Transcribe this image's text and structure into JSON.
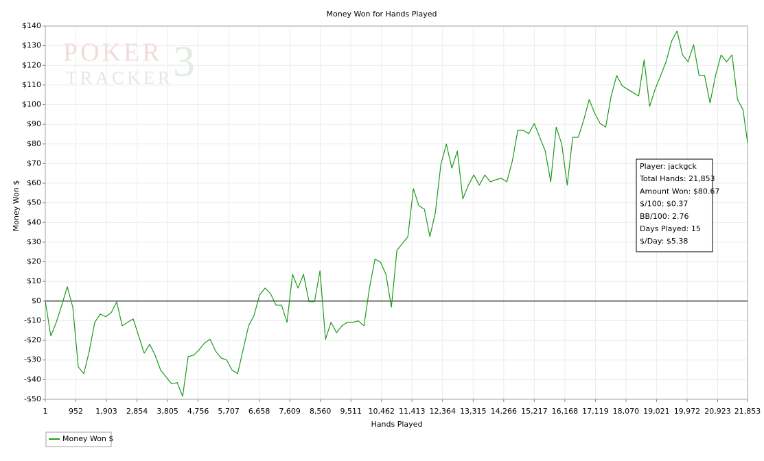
{
  "chart_data": {
    "type": "line",
    "title": "Money Won for Hands Played",
    "x_label": "Hands Played",
    "y_label": "Money Won $",
    "watermark": [
      "POKER",
      "TRACKER",
      "3"
    ],
    "info_box": [
      "Player: jackgck",
      "Total Hands: 21,853",
      "Amount Won: $80.67",
      "$/100: $0.37",
      "BB/100: 2.76",
      "Days Played: 15",
      "$/Day: $5.38"
    ],
    "grid": true,
    "zero_line": true,
    "legend": "bottom-left",
    "xlim": [
      1,
      21853
    ],
    "ylim": [
      -50,
      140
    ],
    "xticks": [
      1,
      {
        "value": 952,
        "label": "952"
      },
      {
        "value": 1903,
        "label": "1,903"
      },
      {
        "value": 2854,
        "label": "2,854"
      },
      {
        "value": 3805,
        "label": "3,805"
      },
      {
        "value": 4756,
        "label": "4,756"
      },
      {
        "value": 5707,
        "label": "5,707"
      },
      {
        "value": 6658,
        "label": "6,658"
      },
      {
        "value": 7609,
        "label": "7,609"
      },
      {
        "value": 8560,
        "label": "8,560"
      },
      {
        "value": 9511,
        "label": "9,511"
      },
      {
        "value": 10462,
        "label": "10,462"
      },
      {
        "value": 11413,
        "label": "11,413"
      },
      {
        "value": 12364,
        "label": "12,364"
      },
      {
        "value": 13315,
        "label": "13,315"
      },
      {
        "value": 14266,
        "label": "14,266"
      },
      {
        "value": 15217,
        "label": "15,217"
      },
      {
        "value": 16168,
        "label": "16,168"
      },
      {
        "value": 17119,
        "label": "17,119"
      },
      {
        "value": 18070,
        "label": "18,070"
      },
      {
        "value": 19021,
        "label": "19,021"
      },
      {
        "value": 19972,
        "label": "19,972"
      },
      {
        "value": 20923,
        "label": "20,923"
      },
      {
        "value": 21853,
        "label": "21,853"
      }
    ],
    "yticks": [
      {
        "value": -50,
        "label": "-$50"
      },
      {
        "value": -40,
        "label": "-$40"
      },
      {
        "value": -30,
        "label": "-$30"
      },
      {
        "value": -20,
        "label": "-$20"
      },
      {
        "value": -10,
        "label": "-$10"
      },
      {
        "value": 0,
        "label": "$0"
      },
      {
        "value": 10,
        "label": "$10"
      },
      {
        "value": 20,
        "label": "$20"
      },
      {
        "value": 30,
        "label": "$30"
      },
      {
        "value": 40,
        "label": "$40"
      },
      {
        "value": 50,
        "label": "$50"
      },
      {
        "value": 60,
        "label": "$60"
      },
      {
        "value": 70,
        "label": "$70"
      },
      {
        "value": 80,
        "label": "$80"
      },
      {
        "value": 90,
        "label": "$90"
      },
      {
        "value": 100,
        "label": "$100"
      },
      {
        "value": 110,
        "label": "$110"
      },
      {
        "value": 120,
        "label": "$120"
      },
      {
        "value": 130,
        "label": "$130"
      },
      {
        "value": 140,
        "label": "$140"
      }
    ],
    "x": [
      1,
      172,
      343,
      514,
      685,
      856,
      1027,
      1198,
      1369,
      1540,
      1711,
      1882,
      2053,
      2223,
      2394,
      2565,
      2736,
      2907,
      3078,
      3249,
      3420,
      3591,
      3762,
      3933,
      4104,
      4275,
      4446,
      4617,
      4788,
      4959,
      5130,
      5301,
      5472,
      5643,
      5814,
      5985,
      6156,
      6327,
      6497,
      6668,
      6839,
      7010,
      7181,
      7352,
      7523,
      7694,
      7865,
      8036,
      8207,
      8378,
      8549,
      8720,
      8891,
      9062,
      9233,
      9404,
      9575,
      9746,
      9917,
      10088,
      10259,
      10430,
      10601,
      10771,
      10942,
      11113,
      11284,
      11455,
      11626,
      11797,
      11968,
      12139,
      12310,
      12481,
      12652,
      12823,
      12994,
      13165,
      13336,
      13507,
      13678,
      13849,
      14020,
      14191,
      14362,
      14533,
      14704,
      14875,
      15045,
      15216,
      15387,
      15558,
      15729,
      15900,
      16071,
      16242,
      16413,
      16584,
      16755,
      16926,
      17097,
      17268,
      17439,
      17610,
      17781,
      17952,
      18123,
      18294,
      18465,
      18636,
      18807,
      18978,
      19149,
      19319,
      19490,
      19661,
      19832,
      20003,
      20174,
      20345,
      20516,
      20687,
      20858,
      21029,
      21200,
      21371,
      21542,
      21713,
      21853
    ],
    "series": [
      {
        "name": "Money Won $",
        "color": "#1a9a1a",
        "values": [
          0,
          -17.8,
          -10.8,
          -2.1,
          7.3,
          -3.1,
          -33.5,
          -37.0,
          -25.5,
          -10.8,
          -6.6,
          -8.0,
          -5.9,
          -0.5,
          -12.6,
          -10.8,
          -9.1,
          -17.8,
          -26.5,
          -22.0,
          -27.6,
          -35.2,
          -38.7,
          -42.2,
          -41.5,
          -48.5,
          -28.3,
          -27.6,
          -24.8,
          -21.3,
          -19.5,
          -25.5,
          -29.0,
          -30.0,
          -35.2,
          -37.0,
          -24.8,
          -12.6,
          -7.3,
          3.1,
          6.6,
          3.8,
          -2.1,
          -2.1,
          -10.8,
          13.6,
          6.6,
          13.6,
          -0.3,
          -0.3,
          15.4,
          -19.5,
          -10.8,
          -16.1,
          -12.6,
          -10.8,
          -10.8,
          -10.1,
          -12.6,
          6.6,
          21.3,
          19.9,
          13.6,
          -3.1,
          25.8,
          29.3,
          32.8,
          57.2,
          48.5,
          46.8,
          32.8,
          45.0,
          69.5,
          79.9,
          67.7,
          76.4,
          52.0,
          59.0,
          64.2,
          59.0,
          64.2,
          60.7,
          61.8,
          62.5,
          60.7,
          71.2,
          86.9,
          86.9,
          85.2,
          90.4,
          83.4,
          76.4,
          60.7,
          88.6,
          79.9,
          59.0,
          83.4,
          83.4,
          92.1,
          102.6,
          95.6,
          90.4,
          88.6,
          104.4,
          114.8,
          109.6,
          107.8,
          106.1,
          104.4,
          122.8,
          99.1,
          107.8,
          114.8,
          121.8,
          132.3,
          137.5,
          125.3,
          121.8,
          130.5,
          114.8,
          114.8,
          100.9,
          114.8,
          125.3,
          121.8,
          125.3,
          102.6,
          97.4,
          80.7
        ]
      }
    ]
  }
}
